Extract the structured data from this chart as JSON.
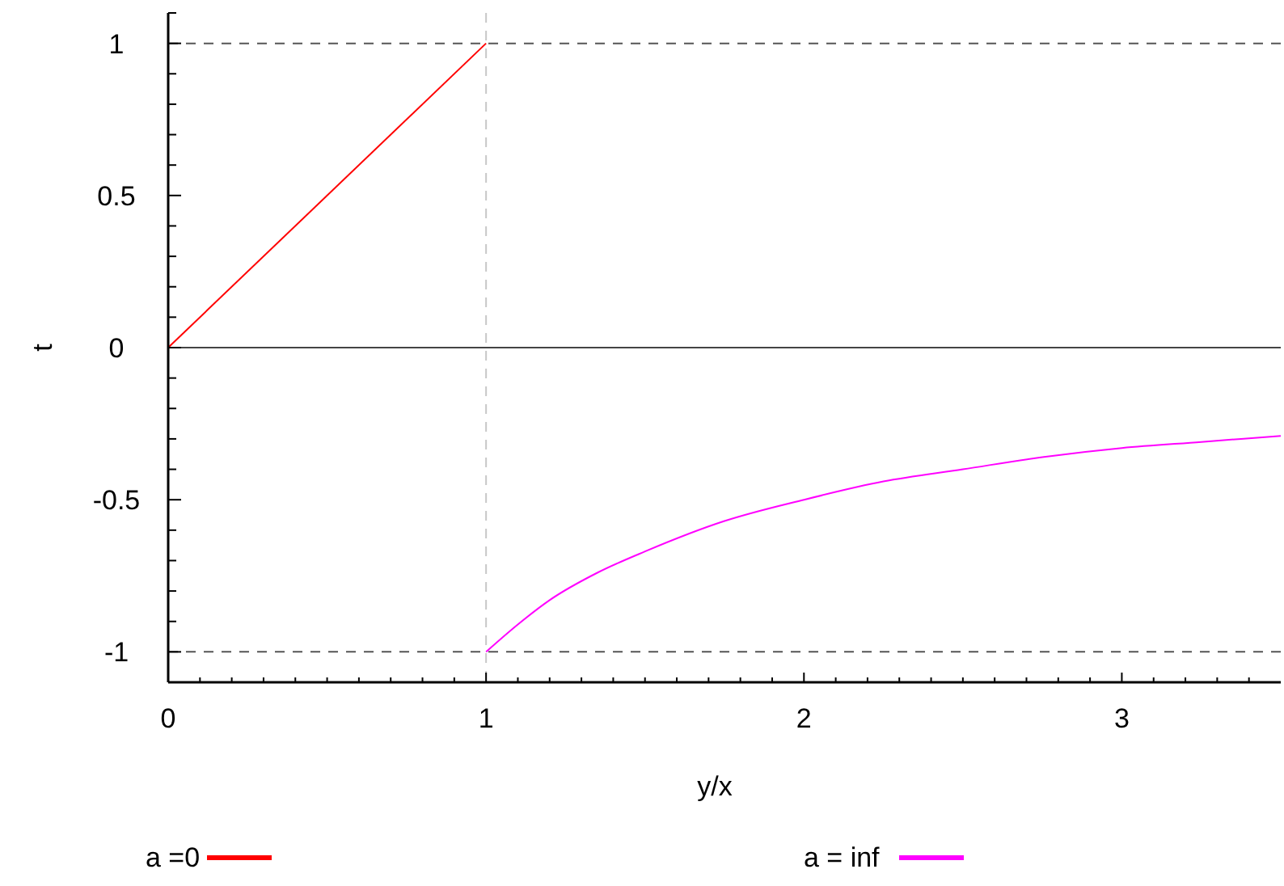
{
  "chart_data": {
    "type": "line",
    "xlabel": "y/x",
    "ylabel": "t",
    "xlim": [
      0,
      3.5
    ],
    "ylim": [
      -1.1,
      1.1
    ],
    "xticks": [
      0,
      {
        "value": 0.1,
        "label": null
      },
      {
        "value": 0.2,
        "label": null
      },
      {
        "value": 0.3,
        "label": null
      },
      {
        "value": 0.4,
        "label": null
      },
      {
        "value": 0.5,
        "label": null
      },
      {
        "value": 0.6,
        "label": null
      },
      {
        "value": 0.7,
        "label": null
      },
      {
        "value": 0.8,
        "label": null
      },
      {
        "value": 0.9,
        "label": null
      },
      1,
      {
        "value": 1.1,
        "label": null
      },
      {
        "value": 1.2,
        "label": null
      },
      {
        "value": 1.3,
        "label": null
      },
      {
        "value": 1.4,
        "label": null
      },
      {
        "value": 1.5,
        "label": null
      },
      {
        "value": 1.6,
        "label": null
      },
      {
        "value": 1.7,
        "label": null
      },
      {
        "value": 1.8,
        "label": null
      },
      {
        "value": 1.9,
        "label": null
      },
      2,
      {
        "value": 2.1,
        "label": null
      },
      {
        "value": 2.2,
        "label": null
      },
      {
        "value": 2.3,
        "label": null
      },
      {
        "value": 2.4,
        "label": null
      },
      {
        "value": 2.5,
        "label": null
      },
      {
        "value": 2.6,
        "label": null
      },
      {
        "value": 2.7,
        "label": null
      },
      {
        "value": 2.8,
        "label": null
      },
      {
        "value": 2.9,
        "label": null
      },
      3,
      {
        "value": 3.1,
        "label": null
      },
      {
        "value": 3.2,
        "label": null
      },
      {
        "value": 3.3,
        "label": null
      },
      {
        "value": 3.4,
        "label": null
      }
    ],
    "yticks": [
      {
        "value": -1.1,
        "label": null
      },
      -1,
      {
        "value": -0.9,
        "label": null
      },
      {
        "value": -0.8,
        "label": null
      },
      {
        "value": -0.7,
        "label": null
      },
      {
        "value": -0.6,
        "label": null
      },
      -0.5,
      {
        "value": -0.4,
        "label": null
      },
      {
        "value": -0.3,
        "label": null
      },
      {
        "value": -0.2,
        "label": null
      },
      {
        "value": -0.1,
        "label": null
      },
      0,
      {
        "value": 0.1,
        "label": null
      },
      {
        "value": 0.2,
        "label": null
      },
      {
        "value": 0.3,
        "label": null
      },
      {
        "value": 0.4,
        "label": null
      },
      0.5,
      {
        "value": 0.6,
        "label": null
      },
      {
        "value": 0.7,
        "label": null
      },
      {
        "value": 0.8,
        "label": null
      },
      {
        "value": 0.9,
        "label": null
      },
      1,
      {
        "value": 1.1,
        "label": null
      }
    ],
    "ref_lines": [
      {
        "axis": "y",
        "value": 1,
        "color": "#555555",
        "line_style": "dashed"
      },
      {
        "axis": "y",
        "value": -1,
        "color": "#555555",
        "line_style": "dashed"
      },
      {
        "axis": "x",
        "value": 1,
        "color": "#c8c8c8",
        "line_style": "dashed"
      },
      {
        "axis": "y",
        "value": 0,
        "color": "#444444",
        "line_style": "solid"
      }
    ],
    "legend": "bottom",
    "grid": false,
    "marker": "none",
    "line_style": "solid",
    "series": [
      {
        "name": "a =0",
        "color": "#ff0000",
        "x": [
          0,
          1
        ],
        "values": [
          0,
          1
        ]
      },
      {
        "name": "a = inf",
        "color": "#ff00ff",
        "x": [
          1,
          1.1,
          1.2,
          1.35,
          1.5,
          1.75,
          2,
          2.25,
          2.5,
          2.75,
          3,
          3.25,
          3.5
        ],
        "values": [
          -1,
          -0.91,
          -0.83,
          -0.74,
          -0.67,
          -0.57,
          -0.5,
          -0.44,
          -0.4,
          -0.36,
          -0.33,
          -0.31,
          -0.29
        ]
      }
    ]
  }
}
